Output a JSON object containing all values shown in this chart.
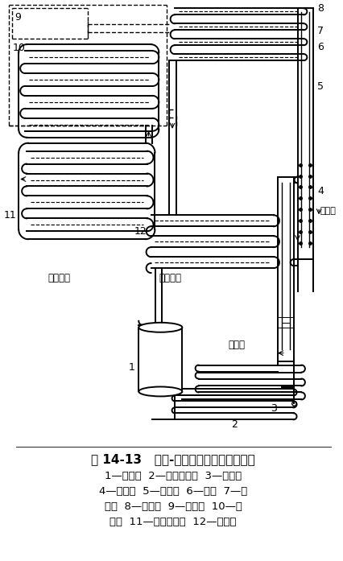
{
  "title": "图 14-13   扩散-吸收式制冷机的循环流程",
  "caption_lines": [
    "1—储液器  2—溶液换热器  3—加热器",
    "4—发生器  5—上升管  6—液封  7—冷",
    "凝器  8—精馏器  9—储氢器  10—蒸",
    "发器  11—气体换热器  12—吸收器"
  ],
  "bg_color": "#ffffff",
  "title_fontsize": 11,
  "caption_fontsize": 9.5,
  "label_fontsize": 9
}
